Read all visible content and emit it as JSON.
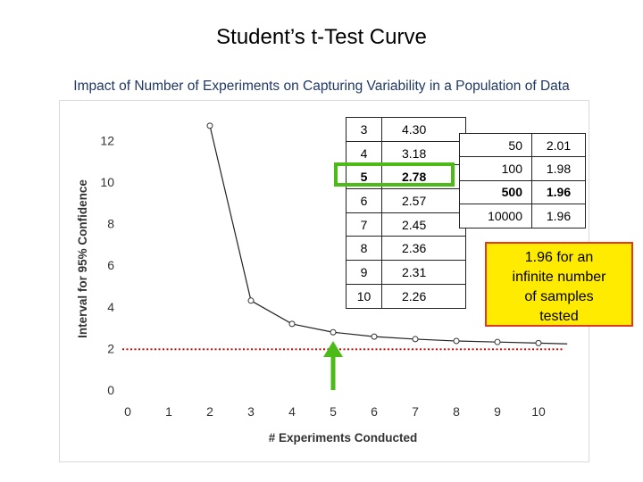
{
  "title": "Student’s t-Test Curve",
  "subtitle": "Impact of Number of Experiments on Capturing Variability in a Population of Data",
  "chart_data": {
    "type": "line",
    "title": "",
    "xlabel": "# Experiments Conducted",
    "ylabel": "Interval for 95% Confidence",
    "xlim": [
      0,
      10.8
    ],
    "ylim": [
      0,
      13
    ],
    "x_ticks": [
      0,
      1,
      2,
      3,
      4,
      5,
      6,
      7,
      8,
      9,
      10
    ],
    "y_ticks": [
      0,
      2,
      4,
      6,
      8,
      10,
      12
    ],
    "grid": false,
    "series": [
      {
        "x": [
          2,
          3,
          4,
          5,
          6,
          7,
          8,
          9,
          10
        ],
        "values": [
          12.71,
          4.3,
          3.18,
          2.78,
          2.57,
          2.45,
          2.36,
          2.31,
          2.26
        ],
        "tail_to_x": 10.7,
        "tail_value": 2.22,
        "color": "#222222"
      }
    ],
    "reference_line": {
      "y": 1.96,
      "color": "#c00000",
      "style": "dotted"
    },
    "arrow_at_x": 5,
    "arrow_color": "#4cbb17"
  },
  "table_left": [
    {
      "n": "3",
      "t": "4.30",
      "bold": false
    },
    {
      "n": "4",
      "t": "3.18",
      "bold": false
    },
    {
      "n": "5",
      "t": "2.78",
      "bold": true
    },
    {
      "n": "6",
      "t": "2.57",
      "bold": false
    },
    {
      "n": "7",
      "t": "2.45",
      "bold": false
    },
    {
      "n": "8",
      "t": "2.36",
      "bold": false
    },
    {
      "n": "9",
      "t": "2.31",
      "bold": false
    },
    {
      "n": "10",
      "t": "2.26",
      "bold": false
    }
  ],
  "table_right": [
    {
      "n": "50",
      "t": "2.01",
      "bold": false
    },
    {
      "n": "100",
      "t": "1.98",
      "bold": false
    },
    {
      "n": "500",
      "t": "1.96",
      "bold": true
    },
    {
      "n": "10000",
      "t": "1.96",
      "bold": false
    }
  ],
  "callout": {
    "lines": [
      "1.96 for an",
      "infinite number",
      "of samples",
      "tested"
    ]
  }
}
